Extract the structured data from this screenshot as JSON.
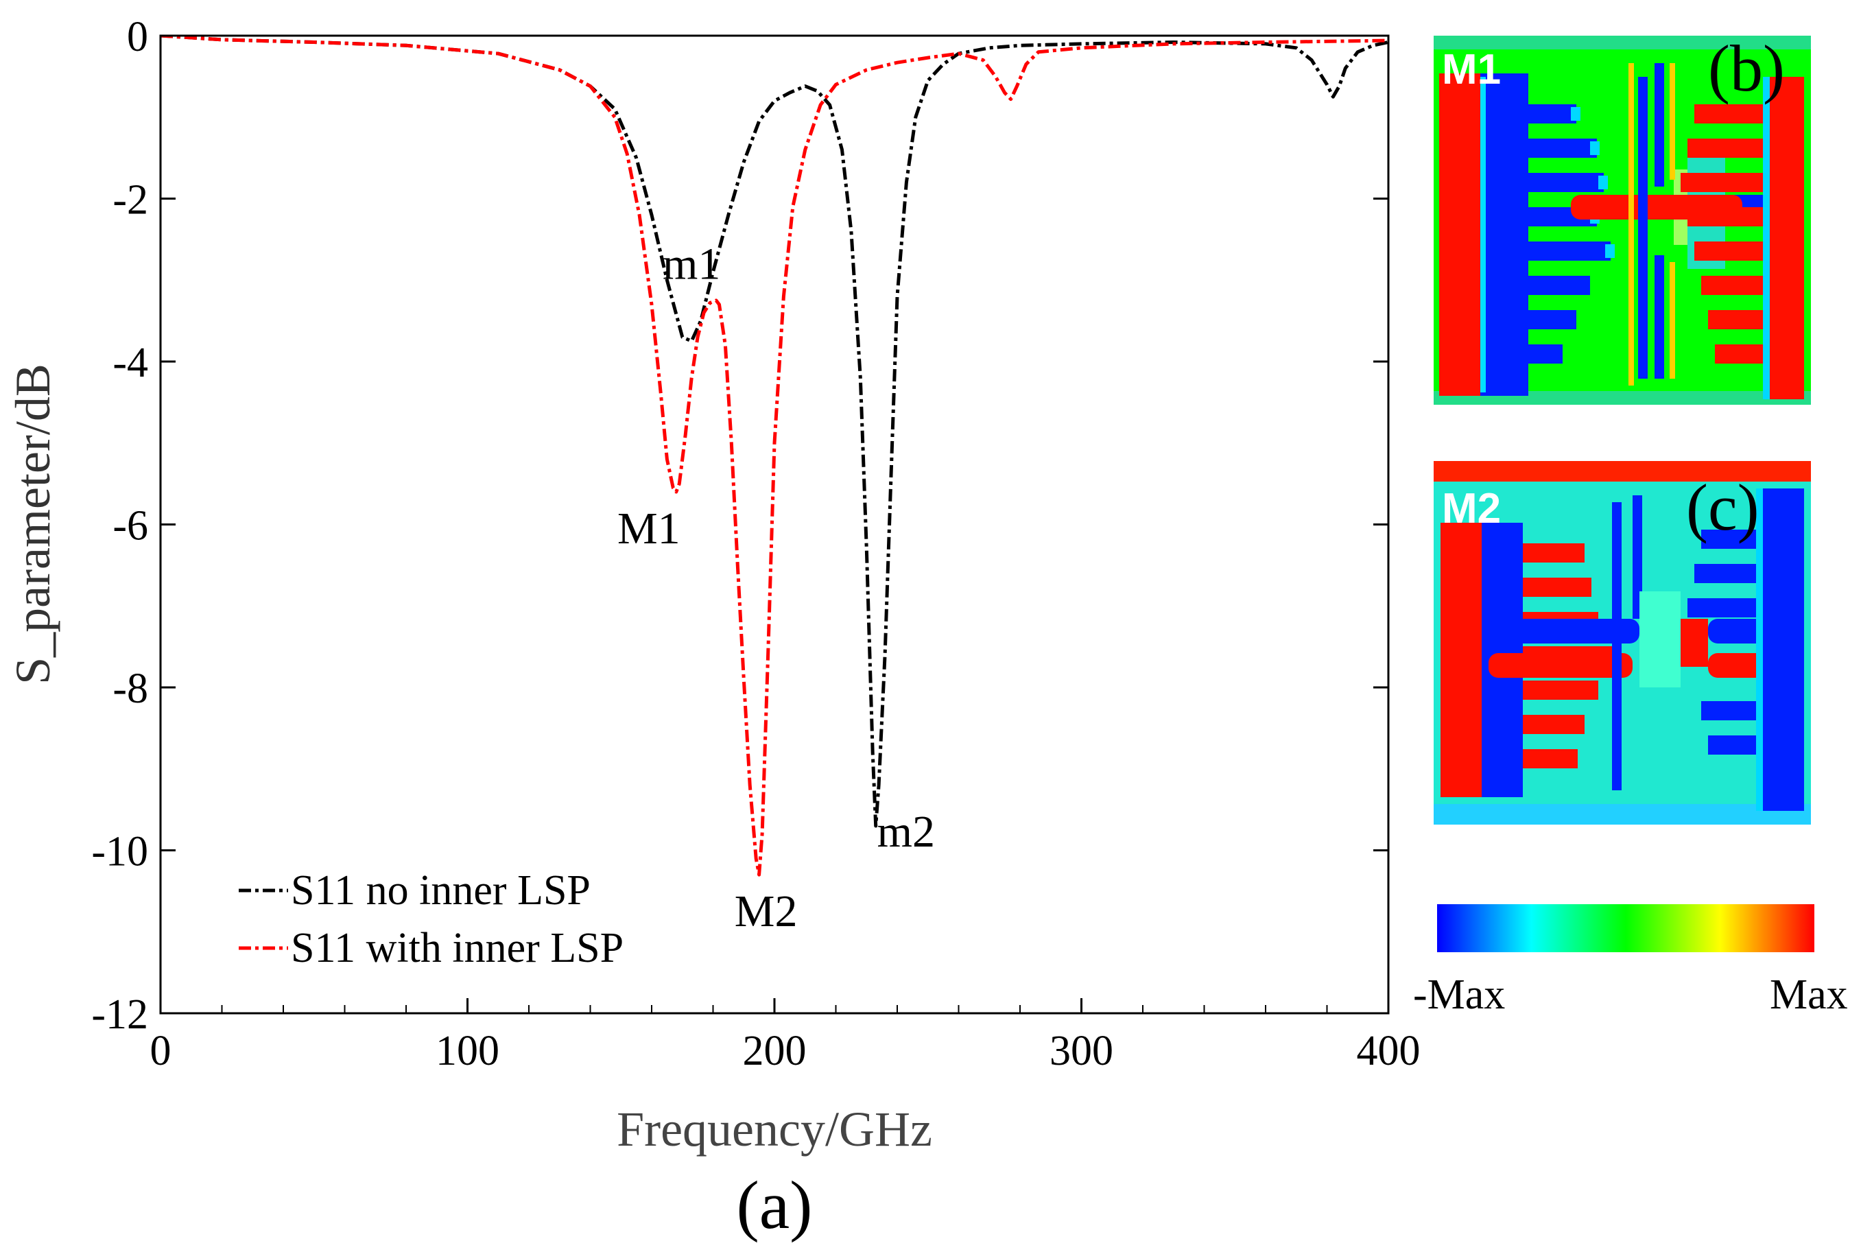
{
  "chart_data": {
    "type": "line",
    "panel_label": "(a)",
    "xlabel": "Frequency/GHz",
    "ylabel": "S_parameter/dB",
    "xlim": [
      0,
      400
    ],
    "ylim": [
      -12,
      0
    ],
    "x_ticks": [
      0,
      100,
      200,
      300,
      400
    ],
    "y_ticks": [
      0,
      -2,
      -4,
      -6,
      -8,
      -10,
      -12
    ],
    "grid": false,
    "legend_position": "bottom-left",
    "series": [
      {
        "name": "S11 no inner LSP",
        "color": "#000000",
        "line_style": "dash-dot",
        "x": [
          0,
          20,
          50,
          80,
          110,
          130,
          140,
          148,
          155,
          160,
          165,
          170,
          173,
          176,
          180,
          185,
          190,
          195,
          200,
          205,
          210,
          214,
          218,
          222,
          225,
          228,
          230,
          232,
          233,
          234,
          236,
          238,
          240,
          243,
          246,
          250,
          255,
          260,
          270,
          280,
          300,
          330,
          360,
          370,
          375,
          380,
          382,
          384,
          386,
          390,
          395,
          400
        ],
        "y": [
          0,
          -0.05,
          -0.08,
          -0.12,
          -0.22,
          -0.42,
          -0.62,
          -0.9,
          -1.5,
          -2.2,
          -3.0,
          -3.7,
          -3.75,
          -3.5,
          -2.9,
          -2.2,
          -1.55,
          -1.05,
          -0.8,
          -0.7,
          -0.62,
          -0.68,
          -0.85,
          -1.4,
          -2.4,
          -4.2,
          -6.3,
          -8.8,
          -9.7,
          -9.2,
          -7.6,
          -5.4,
          -3.2,
          -1.8,
          -1.0,
          -0.55,
          -0.35,
          -0.22,
          -0.15,
          -0.12,
          -0.1,
          -0.08,
          -0.1,
          -0.15,
          -0.3,
          -0.6,
          -0.75,
          -0.62,
          -0.4,
          -0.2,
          -0.12,
          -0.08
        ]
      },
      {
        "name": "S11 with inner LSP",
        "color": "#ff0000",
        "line_style": "dash-dot",
        "x": [
          0,
          20,
          50,
          80,
          110,
          130,
          140,
          148,
          152,
          156,
          160,
          163,
          165,
          167,
          168,
          169,
          171,
          173,
          175,
          177,
          179,
          181,
          182,
          184,
          186,
          188,
          190,
          192,
          194,
          195,
          196,
          198,
          200,
          203,
          206,
          210,
          215,
          220,
          230,
          240,
          250,
          260,
          268,
          272,
          275,
          277,
          279,
          282,
          286,
          300,
          330,
          360,
          400
        ],
        "y": [
          0,
          -0.05,
          -0.08,
          -0.12,
          -0.22,
          -0.42,
          -0.62,
          -1.0,
          -1.45,
          -2.2,
          -3.3,
          -4.4,
          -5.2,
          -5.55,
          -5.6,
          -5.5,
          -4.9,
          -4.2,
          -3.7,
          -3.4,
          -3.28,
          -3.25,
          -3.3,
          -3.8,
          -5.0,
          -6.5,
          -7.9,
          -9.2,
          -10.1,
          -10.3,
          -9.8,
          -7.5,
          -5.0,
          -3.2,
          -2.1,
          -1.4,
          -0.85,
          -0.6,
          -0.42,
          -0.33,
          -0.27,
          -0.22,
          -0.3,
          -0.5,
          -0.7,
          -0.78,
          -0.62,
          -0.35,
          -0.2,
          -0.15,
          -0.1,
          -0.08,
          -0.06
        ]
      }
    ],
    "annotations": [
      {
        "text": "m1",
        "x": 173,
        "y": -3.7
      },
      {
        "text": "m2",
        "x": 233,
        "y": -9.7
      },
      {
        "text": "M1",
        "x": 168,
        "y": -5.6
      },
      {
        "text": "M2",
        "x": 195,
        "y": -10.3
      }
    ]
  },
  "field_maps": [
    {
      "panel_label": "(b)",
      "mode_label": "M1"
    },
    {
      "panel_label": "(c)",
      "mode_label": "M2"
    }
  ],
  "colorbar": {
    "min_label": "-Max",
    "max_label": "Max",
    "colors": [
      "#0000ff",
      "#00ffff",
      "#00ff00",
      "#ffff00",
      "#ff0000"
    ]
  }
}
